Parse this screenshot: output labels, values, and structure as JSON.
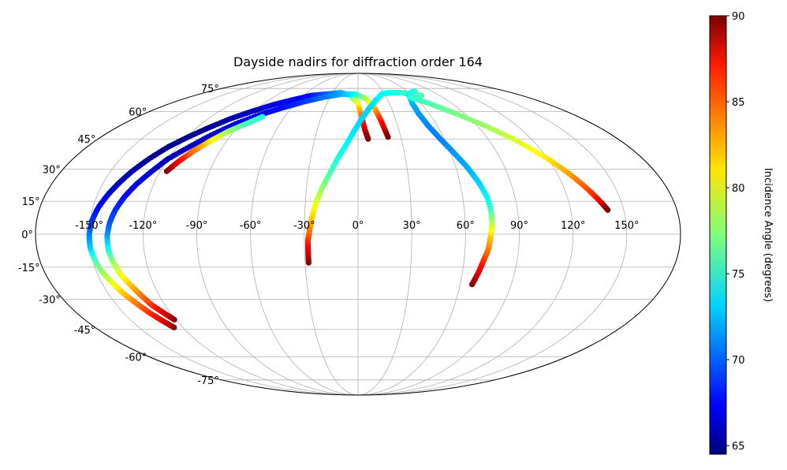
{
  "chart_data": {
    "type": "scatter",
    "projection": "mollweide",
    "title": "Dayside nadirs for diffraction order 164",
    "grid": true,
    "lon_ticks": [
      -150,
      -120,
      -90,
      -60,
      -30,
      0,
      30,
      60,
      90,
      120,
      150
    ],
    "lat_ticks": [
      -75,
      -60,
      -45,
      -30,
      -15,
      0,
      15,
      30,
      45,
      60,
      75
    ],
    "lon_tick_labels": [
      "-150°",
      "-120°",
      "-90°",
      "-60°",
      "-30°",
      "0°",
      "30°",
      "60°",
      "90°",
      "120°",
      "150°"
    ],
    "lat_tick_labels": [
      "-75°",
      "-60°",
      "-45°",
      "-30°",
      "-15°",
      "0°",
      "15°",
      "30°",
      "45°",
      "60°",
      "75°"
    ],
    "colorbar": {
      "label": "Incidence Angle (degrees)",
      "colormap": "jet",
      "min": 64.5,
      "max": 90,
      "ticks": [
        65,
        70,
        75,
        80,
        85,
        90
      ]
    },
    "series": [
      {
        "points": [
          [
            -126,
            -44,
            90
          ],
          [
            -129,
            -41,
            88
          ],
          [
            -133,
            -37,
            86
          ],
          [
            -137,
            -32,
            84
          ],
          [
            -141,
            -27,
            82
          ],
          [
            -144,
            -22,
            80
          ],
          [
            -147,
            -17,
            78
          ],
          [
            -149,
            -11,
            76
          ],
          [
            -150,
            -6,
            73
          ],
          [
            -150,
            0,
            71
          ],
          [
            -149,
            6,
            69
          ],
          [
            -147,
            12,
            68
          ],
          [
            -144,
            18,
            67
          ],
          [
            -141,
            23,
            66
          ],
          [
            -137,
            29,
            65.5
          ],
          [
            -132,
            35,
            65
          ],
          [
            -126,
            41,
            64.8
          ],
          [
            -119,
            46,
            64.8
          ],
          [
            -111,
            51,
            65
          ],
          [
            -102,
            56,
            65.5
          ],
          [
            -92,
            60,
            66
          ],
          [
            -80,
            64,
            67
          ],
          [
            -67,
            67,
            67.5
          ],
          [
            -52,
            70,
            68
          ],
          [
            -35,
            71,
            70
          ],
          [
            -20,
            72,
            72
          ],
          [
            -8,
            70,
            75
          ],
          [
            0,
            65,
            80
          ],
          [
            3,
            57,
            84
          ],
          [
            5,
            50,
            88
          ],
          [
            7,
            45,
            90
          ]
        ]
      },
      {
        "points": [
          [
            -121,
            -40,
            90
          ],
          [
            -124,
            -37,
            88
          ],
          [
            -128,
            -33,
            86
          ],
          [
            -131,
            -28,
            84
          ],
          [
            -134,
            -23,
            82
          ],
          [
            -137,
            -18,
            80
          ],
          [
            -139,
            -12,
            78
          ],
          [
            -140,
            -7,
            75
          ],
          [
            -140,
            -1,
            72
          ],
          [
            -139,
            5,
            70
          ],
          [
            -137,
            11,
            69
          ],
          [
            -134,
            17,
            68
          ],
          [
            -130,
            23,
            67
          ],
          [
            -125,
            29,
            66.5
          ],
          [
            -120,
            35,
            66
          ],
          [
            -112,
            41,
            66
          ],
          [
            -104,
            47,
            66.5
          ],
          [
            -94,
            53,
            67
          ],
          [
            -82,
            58,
            67.5
          ],
          [
            -69,
            62,
            68
          ],
          [
            -53,
            66,
            69
          ],
          [
            -36,
            69,
            70.5
          ],
          [
            -18,
            71,
            72
          ],
          [
            -3,
            71,
            74
          ],
          [
            8,
            68,
            78
          ],
          [
            15,
            62,
            82
          ],
          [
            18,
            55,
            86
          ],
          [
            21,
            46,
            90
          ]
        ]
      },
      {
        "points": [
          [
            -116,
            29,
            90
          ],
          [
            -112,
            34,
            87
          ],
          [
            -107,
            39,
            84
          ],
          [
            -101,
            44,
            81
          ],
          [
            -94,
            49,
            78
          ],
          [
            -86,
            53,
            76
          ],
          [
            -78,
            57,
            75
          ]
        ]
      },
      {
        "points": [
          [
            -28,
            -13,
            90
          ],
          [
            -28,
            -8,
            88
          ],
          [
            -28,
            -3,
            86
          ],
          [
            -27,
            2,
            84
          ],
          [
            -26,
            7,
            82
          ],
          [
            -24,
            14,
            80
          ],
          [
            -21,
            21,
            78
          ],
          [
            -17,
            28,
            76
          ],
          [
            -13,
            35,
            75
          ],
          [
            -8,
            42,
            74
          ],
          [
            -3,
            49,
            73.5
          ],
          [
            3,
            56,
            73
          ],
          [
            10,
            62,
            73
          ],
          [
            18,
            67,
            73.5
          ],
          [
            27,
            71,
            74
          ],
          [
            37,
            72,
            74.5
          ],
          [
            49,
            72,
            75
          ],
          [
            60,
            71,
            75.5
          ],
          [
            70,
            70,
            76
          ]
        ]
      },
      {
        "points": [
          [
            67,
            -23,
            90
          ],
          [
            69,
            -18,
            88
          ],
          [
            71,
            -12,
            86
          ],
          [
            73,
            -7,
            84
          ],
          [
            74,
            -1,
            82
          ],
          [
            75,
            5,
            79
          ],
          [
            75,
            11,
            76
          ],
          [
            74,
            17,
            74
          ],
          [
            71,
            24,
            73
          ],
          [
            67,
            31,
            72
          ],
          [
            62,
            38,
            71.5
          ],
          [
            57,
            45,
            71
          ],
          [
            53,
            52,
            71
          ],
          [
            51,
            59,
            71.5
          ],
          [
            52,
            65,
            72
          ],
          [
            56,
            70,
            73
          ],
          [
            62,
            72,
            74
          ],
          [
            69,
            73,
            75
          ]
        ]
      },
      {
        "points": [
          [
            55,
            69,
            75
          ],
          [
            68,
            65,
            76
          ],
          [
            82,
            59,
            77
          ],
          [
            96,
            52,
            78
          ],
          [
            109,
            44,
            79.5
          ],
          [
            120,
            35,
            81
          ],
          [
            128,
            27,
            83
          ],
          [
            134,
            20,
            85
          ],
          [
            138,
            15,
            87
          ],
          [
            141,
            11,
            90
          ]
        ]
      }
    ]
  }
}
